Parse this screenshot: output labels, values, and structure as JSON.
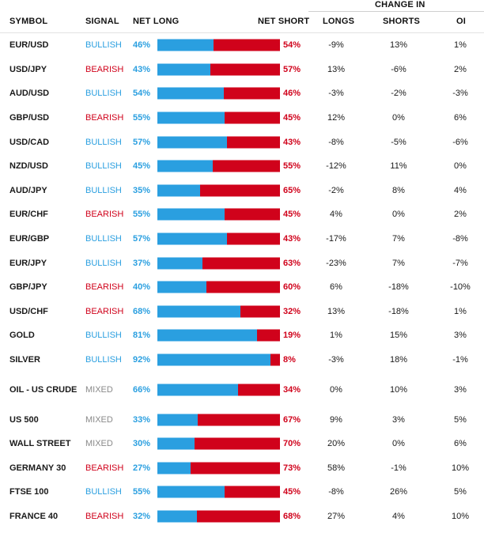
{
  "header": {
    "symbol": "SYMBOL",
    "signal": "SIGNAL",
    "net_long": "NET LONG",
    "net_short": "NET SHORT",
    "change_in": "CHANGE IN",
    "longs": "LONGS",
    "shorts": "SHORTS",
    "oi": "OI"
  },
  "colors": {
    "long": "#2a9fe0",
    "short": "#d0021b",
    "mixed": "#8a8a8a"
  },
  "rows": [
    {
      "symbol": "EUR/USD",
      "signal": "BULLISH",
      "long": "46%",
      "short": "54%",
      "longs": "-9%",
      "shorts": "13%",
      "oi": "1%"
    },
    {
      "symbol": "USD/JPY",
      "signal": "BEARISH",
      "long": "43%",
      "short": "57%",
      "longs": "13%",
      "shorts": "-6%",
      "oi": "2%"
    },
    {
      "symbol": "AUD/USD",
      "signal": "BULLISH",
      "long": "54%",
      "short": "46%",
      "longs": "-3%",
      "shorts": "-2%",
      "oi": "-3%"
    },
    {
      "symbol": "GBP/USD",
      "signal": "BEARISH",
      "long": "55%",
      "short": "45%",
      "longs": "12%",
      "shorts": "0%",
      "oi": "6%"
    },
    {
      "symbol": "USD/CAD",
      "signal": "BULLISH",
      "long": "57%",
      "short": "43%",
      "longs": "-8%",
      "shorts": "-5%",
      "oi": "-6%"
    },
    {
      "symbol": "NZD/USD",
      "signal": "BULLISH",
      "long": "45%",
      "short": "55%",
      "longs": "-12%",
      "shorts": "11%",
      "oi": "0%"
    },
    {
      "symbol": "AUD/JPY",
      "signal": "BULLISH",
      "long": "35%",
      "short": "65%",
      "longs": "-2%",
      "shorts": "8%",
      "oi": "4%"
    },
    {
      "symbol": "EUR/CHF",
      "signal": "BEARISH",
      "long": "55%",
      "short": "45%",
      "longs": "4%",
      "shorts": "0%",
      "oi": "2%"
    },
    {
      "symbol": "EUR/GBP",
      "signal": "BULLISH",
      "long": "57%",
      "short": "43%",
      "longs": "-17%",
      "shorts": "7%",
      "oi": "-8%"
    },
    {
      "symbol": "EUR/JPY",
      "signal": "BULLISH",
      "long": "37%",
      "short": "63%",
      "longs": "-23%",
      "shorts": "7%",
      "oi": "-7%"
    },
    {
      "symbol": "GBP/JPY",
      "signal": "BEARISH",
      "long": "40%",
      "short": "60%",
      "longs": "6%",
      "shorts": "-18%",
      "oi": "-10%"
    },
    {
      "symbol": "USD/CHF",
      "signal": "BEARISH",
      "long": "68%",
      "short": "32%",
      "longs": "13%",
      "shorts": "-18%",
      "oi": "1%"
    },
    {
      "symbol": "GOLD",
      "signal": "BULLISH",
      "long": "81%",
      "short": "19%",
      "longs": "1%",
      "shorts": "15%",
      "oi": "3%"
    },
    {
      "symbol": "SILVER",
      "signal": "BULLISH",
      "long": "92%",
      "short": "8%",
      "longs": "-3%",
      "shorts": "18%",
      "oi": "-1%"
    },
    {
      "symbol": "OIL - US CRUDE",
      "signal": "MIXED",
      "long": "66%",
      "short": "34%",
      "longs": "0%",
      "shorts": "10%",
      "oi": "3%"
    },
    {
      "symbol": "US 500",
      "signal": "MIXED",
      "long": "33%",
      "short": "67%",
      "longs": "9%",
      "shorts": "3%",
      "oi": "5%"
    },
    {
      "symbol": "WALL STREET",
      "signal": "MIXED",
      "long": "30%",
      "short": "70%",
      "longs": "20%",
      "shorts": "0%",
      "oi": "6%"
    },
    {
      "symbol": "GERMANY 30",
      "signal": "BEARISH",
      "long": "27%",
      "short": "73%",
      "longs": "58%",
      "shorts": "-1%",
      "oi": "10%"
    },
    {
      "symbol": "FTSE 100",
      "signal": "BULLISH",
      "long": "55%",
      "short": "45%",
      "longs": "-8%",
      "shorts": "26%",
      "oi": "5%"
    },
    {
      "symbol": "FRANCE 40",
      "signal": "BEARISH",
      "long": "32%",
      "short": "68%",
      "longs": "27%",
      "shorts": "4%",
      "oi": "10%"
    }
  ]
}
